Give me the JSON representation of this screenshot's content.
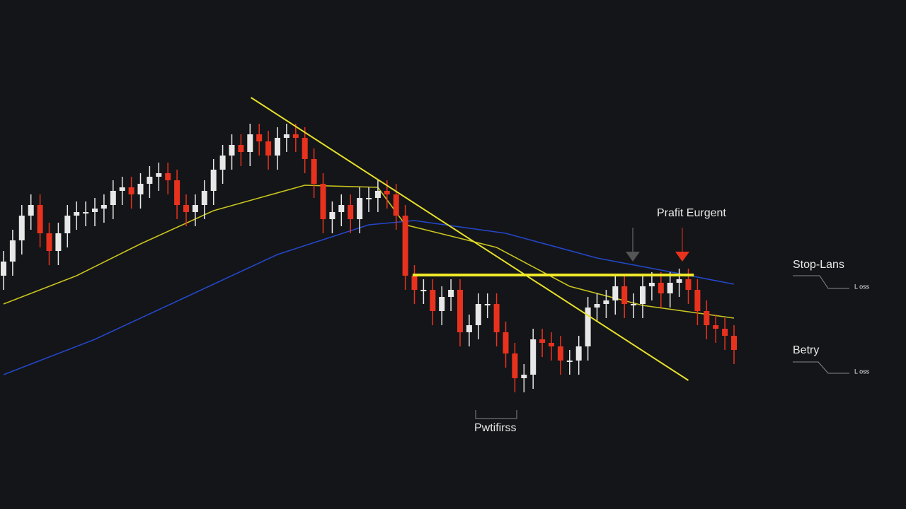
{
  "chart_data": {
    "type": "candlestick",
    "ylim": [
      0,
      60
    ],
    "up_color": "#e8e8e8",
    "down_color": "#e8321e",
    "categories": [
      null,
      null,
      null,
      null,
      null,
      null,
      null,
      null,
      null,
      null,
      null,
      null,
      null,
      null,
      null,
      null,
      null,
      null,
      null,
      null,
      null,
      null,
      null,
      null,
      null,
      null,
      null,
      null,
      null,
      null,
      null,
      null,
      null,
      null,
      null,
      null,
      null,
      null,
      null,
      null,
      null,
      null,
      null,
      null,
      null,
      null,
      null,
      null,
      null,
      null,
      null,
      null,
      null,
      null,
      null,
      null,
      null,
      null,
      null,
      null,
      null,
      null,
      null,
      null,
      null,
      null,
      null,
      null,
      null,
      null,
      null,
      null,
      null,
      null,
      null,
      null,
      null,
      null,
      null,
      null,
      null
    ],
    "open": [
      21,
      23,
      26,
      29.5,
      31,
      27,
      24.5,
      27,
      29.5,
      30,
      30,
      30.5,
      31,
      33,
      33.5,
      32.5,
      34,
      35,
      35.5,
      34.5,
      31,
      30,
      31,
      33,
      36,
      38,
      39.5,
      38.5,
      41,
      40,
      38,
      40.5,
      41,
      40.5,
      37.5,
      34,
      29,
      30,
      31,
      29,
      32,
      32,
      33,
      32.5,
      29.5,
      21,
      19,
      19,
      16,
      18,
      19,
      13,
      14,
      17,
      17,
      13,
      10,
      6.5,
      7,
      12,
      11.5,
      11,
      9,
      9,
      11,
      16.5,
      17,
      17.5,
      19.5,
      17,
      17,
      19.5,
      20,
      18.5,
      20,
      20.5,
      19,
      16,
      14,
      13.5,
      12.5
    ],
    "close": [
      23,
      26,
      29.5,
      31,
      27,
      24.5,
      27,
      29.5,
      30,
      30,
      30.5,
      31,
      33,
      33.5,
      32.5,
      34,
      35,
      35.5,
      34.5,
      31,
      30,
      31,
      33,
      36,
      38,
      39.5,
      38.5,
      41,
      40,
      38,
      40.5,
      41,
      40.5,
      37.5,
      34,
      29,
      30,
      31,
      29,
      32,
      32,
      33,
      32.5,
      29.5,
      21,
      19,
      19,
      16,
      18,
      19,
      13,
      14,
      17,
      17,
      13,
      10,
      6.5,
      7,
      12,
      11.5,
      11,
      9,
      9,
      11,
      16.5,
      17,
      17.5,
      19.5,
      17,
      17,
      19.5,
      20,
      18.5,
      20,
      20.5,
      19,
      16,
      14,
      13.5,
      12.5,
      10.5
    ],
    "high": [
      24.5,
      27.5,
      31,
      32.5,
      32.5,
      28.5,
      28.5,
      31,
      31.5,
      31.5,
      32,
      32.5,
      34.5,
      35,
      35,
      35.5,
      36.5,
      37,
      37,
      36,
      32.5,
      32.5,
      34.5,
      37.5,
      39.5,
      41,
      41,
      42.5,
      42.5,
      41.5,
      42,
      42.5,
      42.5,
      42,
      39,
      35.5,
      31.5,
      32.5,
      32.5,
      33.5,
      33.5,
      34.5,
      34.5,
      34,
      31,
      22.5,
      20.5,
      20.5,
      19.5,
      20.5,
      20.5,
      15.5,
      18.5,
      18.5,
      18.5,
      14.5,
      11.5,
      8.5,
      13.5,
      13.5,
      13,
      12.5,
      10.5,
      12.5,
      18,
      18.5,
      19,
      21,
      21,
      18.5,
      21,
      21.5,
      21.5,
      21.5,
      22,
      22,
      20.5,
      17.5,
      15.5,
      15,
      14
    ],
    "low": [
      19,
      21,
      24,
      27.5,
      25,
      22.5,
      22.5,
      25,
      27.5,
      28,
      28,
      28.5,
      29,
      31,
      30.5,
      30.5,
      32,
      33,
      32.5,
      29,
      28,
      28,
      29,
      31,
      34,
      36,
      36.5,
      36.5,
      38,
      36,
      36,
      38.5,
      38.5,
      35.5,
      32,
      27,
      27,
      28,
      27,
      27,
      30,
      30,
      30.5,
      27.5,
      19,
      17,
      17,
      14,
      14,
      16,
      11,
      11,
      12,
      15,
      11,
      8,
      4.5,
      4.5,
      5,
      9.5,
      9,
      7,
      7,
      7,
      9,
      14.5,
      15,
      15.5,
      15,
      15,
      15,
      17.5,
      16.5,
      16.5,
      18,
      17,
      14,
      12,
      11.5,
      10.5,
      8.5
    ],
    "moving_averages": [
      {
        "color": "#c8c41e",
        "x": [
          0,
          8,
          15,
          23,
          33,
          41,
          44,
          54,
          62,
          70,
          80
        ],
        "values": [
          17,
          21,
          25.5,
          30.2,
          33.8,
          33.5,
          28.2,
          25,
          19.5,
          16.8,
          15
        ]
      },
      {
        "color": "#2347c8",
        "x": [
          0,
          10,
          20,
          30,
          40,
          45,
          55,
          65,
          72,
          80
        ],
        "values": [
          7,
          12,
          18,
          24,
          28.2,
          28.8,
          27,
          23.5,
          21.8,
          19.8
        ]
      }
    ],
    "trendlines": [
      {
        "color": "#e6e02a",
        "x": [
          27.1,
          75
        ],
        "values": [
          46.2,
          6.2
        ]
      },
      {
        "color": "#f0ea2a",
        "x": [
          44.8,
          75.6
        ],
        "values": [
          21.1,
          21.1
        ]
      }
    ],
    "annotations": {
      "target": "Prafit Eurgent",
      "stop": "Stop-Lans",
      "stop_note": "L oss",
      "entry": "Betry",
      "entry_note": "L oss",
      "bottom": "Pwtifirss"
    }
  }
}
